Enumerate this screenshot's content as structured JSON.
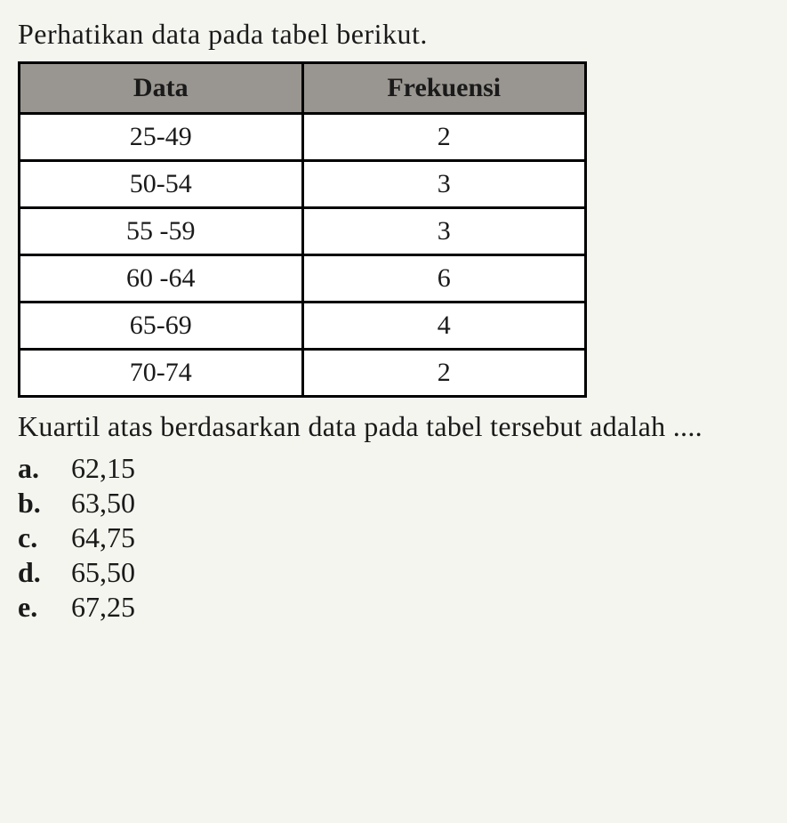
{
  "intro": "Perhatikan data pada tabel berikut.",
  "table": {
    "columns": [
      "Data",
      "Frekuensi"
    ],
    "rows": [
      [
        "25-49",
        "2"
      ],
      [
        "50-54",
        "3"
      ],
      [
        "55 -59",
        "3"
      ],
      [
        "60 -64",
        "6"
      ],
      [
        "65-69",
        "4"
      ],
      [
        "70-74",
        "2"
      ]
    ],
    "header_bg": "#999590",
    "cell_bg": "#ffffff",
    "border_color": "#000000",
    "border_width": 3,
    "font_size": 30
  },
  "question": "Kuartil atas berdasarkan data pada tabel tersebut adalah ....",
  "options": [
    {
      "label": "a.",
      "value": "62,15"
    },
    {
      "label": "b.",
      "value": "63,50"
    },
    {
      "label": "c.",
      "value": "64,75"
    },
    {
      "label": "d.",
      "value": "65,50"
    },
    {
      "label": "e.",
      "value": "67,25"
    }
  ]
}
